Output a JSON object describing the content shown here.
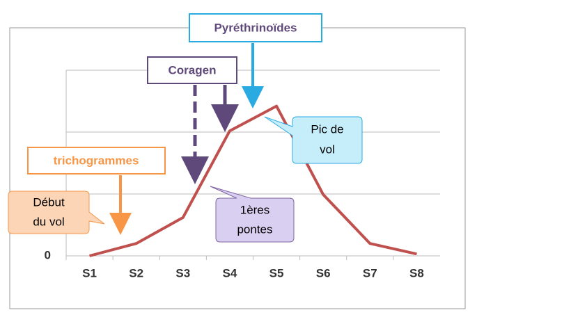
{
  "chart_data": {
    "type": "line",
    "categories": [
      "S1",
      "S2",
      "S3",
      "S4",
      "S5",
      "S6",
      "S7",
      "S8"
    ],
    "values": [
      0,
      0.2,
      0.62,
      2.02,
      2.42,
      0.99,
      0.2,
      0.03
    ],
    "color": "#c0504d",
    "ylim": [
      0,
      3
    ],
    "yticks": [
      0,
      {
        "value": 1,
        "label": null
      },
      {
        "value": 2,
        "label": null
      },
      {
        "value": 3,
        "label": null
      }
    ],
    "grid": true,
    "annotations": [
      "Pyréthrinoïdes",
      "Coragen",
      "trichogrammes",
      [
        "Début",
        "du vol"
      ],
      [
        "Pic de",
        "vol"
      ],
      [
        "1ères",
        "pontes"
      ]
    ]
  }
}
